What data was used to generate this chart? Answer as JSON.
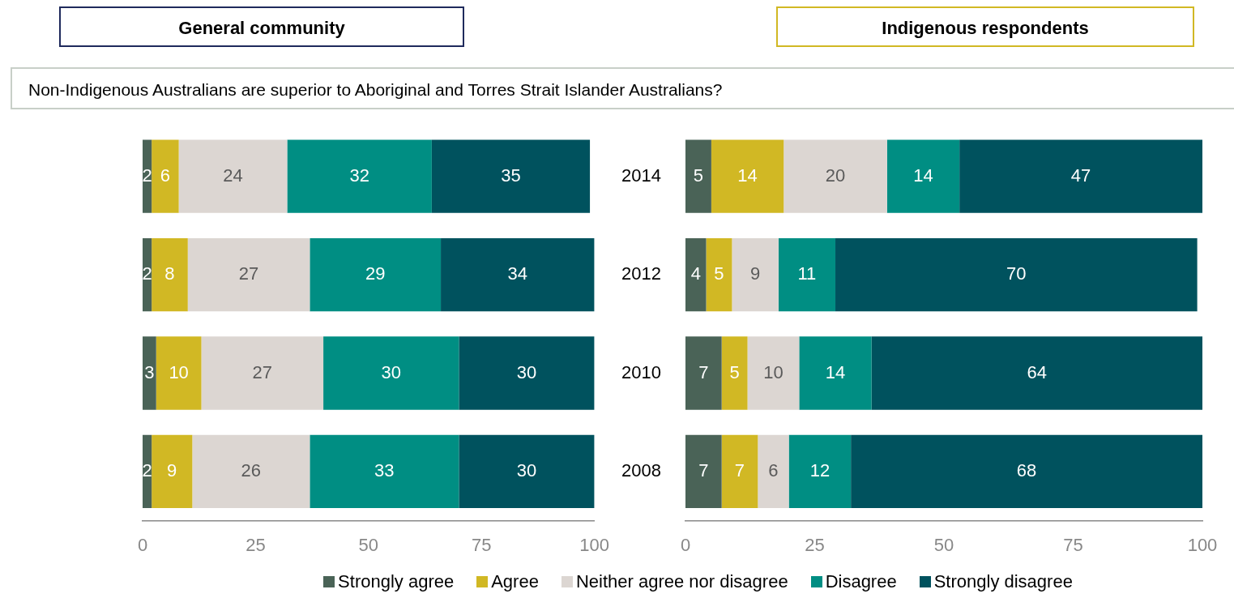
{
  "chart_data": [
    {
      "type": "bar",
      "title": "General community",
      "subtitle": "Non-Indigenous Australians are superior to Aboriginal and Torres Strait Islander Australians?",
      "legend": "bottom",
      "orientation": "horizontal",
      "stacked": true,
      "data_labels": true,
      "tick_labels": "x",
      "categories": [
        "2014",
        "2012",
        "2010",
        "2008"
      ],
      "xlim": [
        0,
        100
      ],
      "xticks": [
        0,
        25,
        50,
        75,
        100
      ],
      "series": [
        {
          "name": "Strongly agree",
          "color": "#4a6357",
          "values": [
            2,
            2,
            3,
            2
          ]
        },
        {
          "name": "Agree",
          "color": "#d1b824",
          "values": [
            6,
            8,
            10,
            9
          ]
        },
        {
          "name": "Neither agree nor disagree",
          "color": "#dcd6d2",
          "values": [
            24,
            27,
            27,
            26
          ]
        },
        {
          "name": "Disagree",
          "color": "#008e83",
          "values": [
            32,
            29,
            30,
            33
          ]
        },
        {
          "name": "Strongly disagree",
          "color": "#00525e",
          "values": [
            35,
            34,
            30,
            30
          ]
        }
      ]
    },
    {
      "type": "bar",
      "title": "Indigenous respondents",
      "orientation": "horizontal",
      "stacked": true,
      "data_labels": true,
      "legend": "bottom",
      "categories": [
        "2014",
        "2012",
        "2010",
        "2008"
      ],
      "xlim": [
        0,
        100
      ],
      "xticks": [
        0,
        25,
        50,
        75,
        100
      ],
      "series": [
        {
          "name": "Strongly agree",
          "color": "#4a6357",
          "values": [
            5,
            4,
            7,
            7
          ]
        },
        {
          "name": "Agree",
          "color": "#d1b824",
          "values": [
            14,
            5,
            5,
            7
          ]
        },
        {
          "name": "Neither agree nor disagree",
          "color": "#dcd6d2",
          "values": [
            20,
            9,
            10,
            6
          ]
        },
        {
          "name": "Disagree",
          "color": "#008e83",
          "values": [
            14,
            11,
            14,
            12
          ]
        },
        {
          "name": "Strongly disagree",
          "color": "#00525e",
          "values": [
            47,
            70,
            64,
            68
          ]
        }
      ]
    }
  ]
}
